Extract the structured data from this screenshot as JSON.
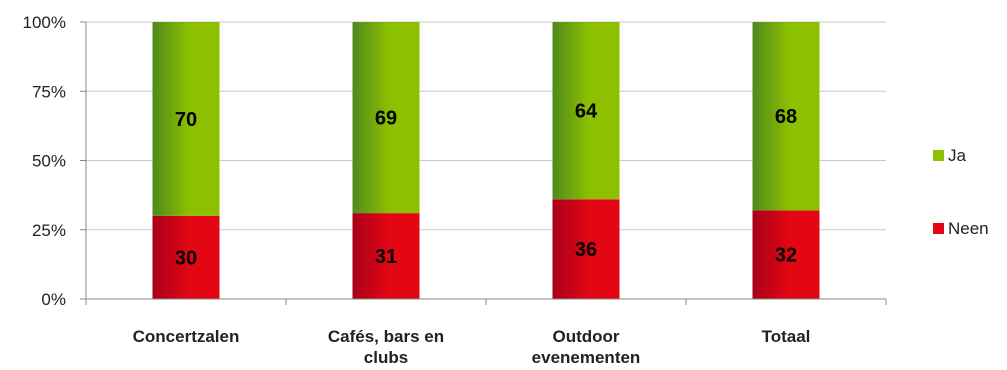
{
  "chart_data": {
    "type": "bar",
    "stacked": true,
    "percent_scale": true,
    "categories": [
      [
        "Concertzalen"
      ],
      [
        "Cafés, bars en",
        "clubs"
      ],
      [
        "Outdoor",
        "evenementen"
      ],
      [
        "Totaal"
      ]
    ],
    "series": [
      {
        "name": "Neen",
        "values": [
          30,
          31,
          36,
          32
        ],
        "color": "#e30613",
        "color_dark": "#a8001a"
      },
      {
        "name": "Ja",
        "values": [
          70,
          69,
          64,
          68
        ],
        "color": "#8cc000",
        "color_dark": "#4e8a1e"
      }
    ],
    "y_ticks": [
      "0%",
      "25%",
      "50%",
      "75%",
      "100%"
    ],
    "ylim": [
      0,
      100
    ],
    "grid": true,
    "legend_position": "right",
    "legend_order": [
      "Ja",
      "Neen"
    ],
    "data_labels": true
  }
}
